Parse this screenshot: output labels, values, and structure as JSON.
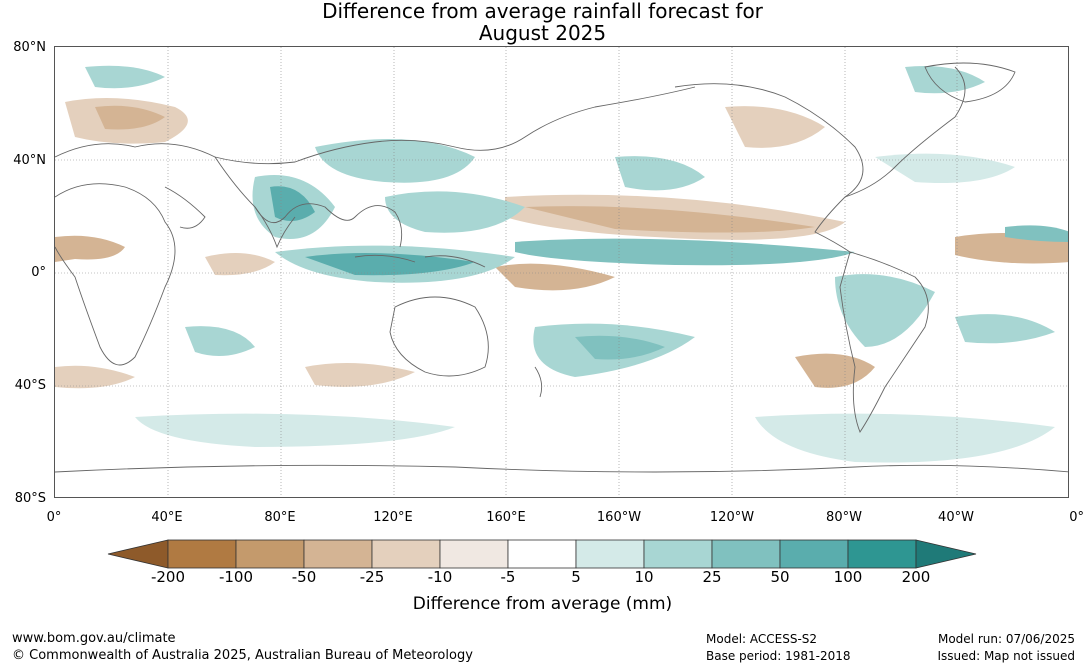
{
  "title_line1": "Difference from average rainfall forecast for",
  "title_line2": "August 2025",
  "lat_labels": [
    "80°N",
    "40°N",
    "0°",
    "40°S",
    "80°S"
  ],
  "lon_labels": [
    "0°",
    "40°E",
    "80°E",
    "120°E",
    "160°E",
    "160°W",
    "120°W",
    "80°W",
    "40°W",
    "0°"
  ],
  "colorbar": {
    "ticks": [
      "-200",
      "-100",
      "-50",
      "-25",
      "-10",
      "-5",
      "5",
      "10",
      "25",
      "50",
      "100",
      "200"
    ],
    "colors": [
      "#8e5a2a",
      "#b07a42",
      "#c49a6c",
      "#d4b494",
      "#e4d0bd",
      "#f0e8e2",
      "#ffffff",
      "#d4eae8",
      "#a8d6d3",
      "#80c1bf",
      "#5aadad",
      "#2e9692",
      "#1f7a78"
    ],
    "title": "Difference from average (mm)"
  },
  "footer": {
    "url": "www.bom.gov.au/climate",
    "copyright": "© Commonwealth of Australia 2025, Australian Bureau of Meteorology",
    "model": "Model: ACCESS-S2",
    "base_period": "Base period: 1981-2018",
    "model_run": "Model run: 07/06/2025",
    "issued": "Issued: Map not issued"
  }
}
